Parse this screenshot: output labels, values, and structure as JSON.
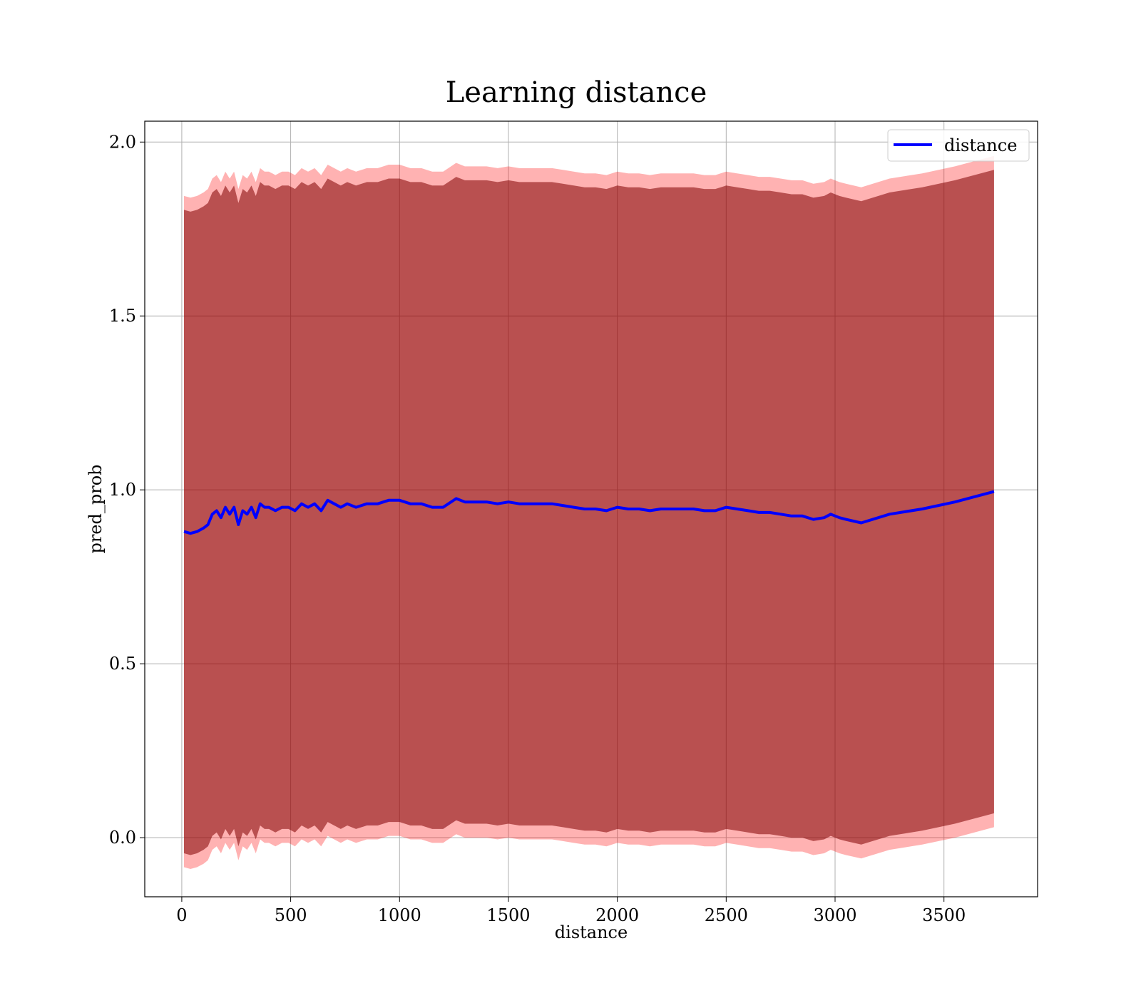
{
  "chart_data": {
    "type": "line",
    "title": "Learning distance",
    "xlabel": "distance",
    "ylabel": "pred_prob",
    "xlim": [
      -170,
      3930
    ],
    "ylim": [
      -0.17,
      2.06
    ],
    "xticks": [
      0,
      500,
      1000,
      1500,
      2000,
      2500,
      3000,
      3500
    ],
    "xtick_labels": [
      "0",
      "500",
      "1000",
      "1500",
      "2000",
      "2500",
      "3000",
      "3500"
    ],
    "yticks": [
      0.0,
      0.5,
      1.0,
      1.5,
      2.0
    ],
    "ytick_labels": [
      "0.0",
      "0.5",
      "1.0",
      "1.5",
      "2.0"
    ],
    "grid": true,
    "legend": {
      "position": "top-right",
      "entries": [
        "distance"
      ]
    },
    "colors": {
      "line": "#0000ff",
      "band_outer": "#ff0000",
      "band_inner": "#800000"
    },
    "series": [
      {
        "name": "distance",
        "x": [
          10,
          40,
          70,
          100,
          120,
          140,
          160,
          180,
          200,
          220,
          240,
          260,
          280,
          300,
          320,
          340,
          360,
          380,
          400,
          430,
          460,
          490,
          520,
          550,
          580,
          610,
          640,
          670,
          700,
          730,
          760,
          800,
          850,
          900,
          950,
          980,
          1000,
          1050,
          1100,
          1150,
          1200,
          1260,
          1300,
          1350,
          1400,
          1450,
          1500,
          1550,
          1600,
          1650,
          1700,
          1750,
          1800,
          1850,
          1900,
          1950,
          2000,
          2050,
          2100,
          2150,
          2200,
          2250,
          2300,
          2350,
          2400,
          2450,
          2500,
          2550,
          2600,
          2650,
          2700,
          2750,
          2800,
          2850,
          2900,
          2950,
          2980,
          3020,
          3050,
          3120,
          3250,
          3400,
          3550,
          3730
        ],
        "y": [
          0.88,
          0.875,
          0.88,
          0.89,
          0.9,
          0.93,
          0.94,
          0.92,
          0.95,
          0.93,
          0.95,
          0.9,
          0.94,
          0.93,
          0.95,
          0.92,
          0.96,
          0.95,
          0.95,
          0.94,
          0.95,
          0.95,
          0.94,
          0.96,
          0.95,
          0.96,
          0.94,
          0.97,
          0.96,
          0.95,
          0.96,
          0.95,
          0.96,
          0.96,
          0.97,
          0.97,
          0.97,
          0.96,
          0.96,
          0.95,
          0.95,
          0.975,
          0.965,
          0.965,
          0.965,
          0.96,
          0.965,
          0.96,
          0.96,
          0.96,
          0.96,
          0.955,
          0.95,
          0.945,
          0.945,
          0.94,
          0.95,
          0.945,
          0.945,
          0.94,
          0.945,
          0.945,
          0.945,
          0.945,
          0.94,
          0.94,
          0.95,
          0.945,
          0.94,
          0.935,
          0.935,
          0.93,
          0.925,
          0.925,
          0.915,
          0.92,
          0.93,
          0.92,
          0.915,
          0.905,
          0.93,
          0.945,
          0.965,
          0.995
        ]
      }
    ],
    "band_outer_halfwidth": 0.965,
    "band_inner_halfwidth": 0.925
  }
}
